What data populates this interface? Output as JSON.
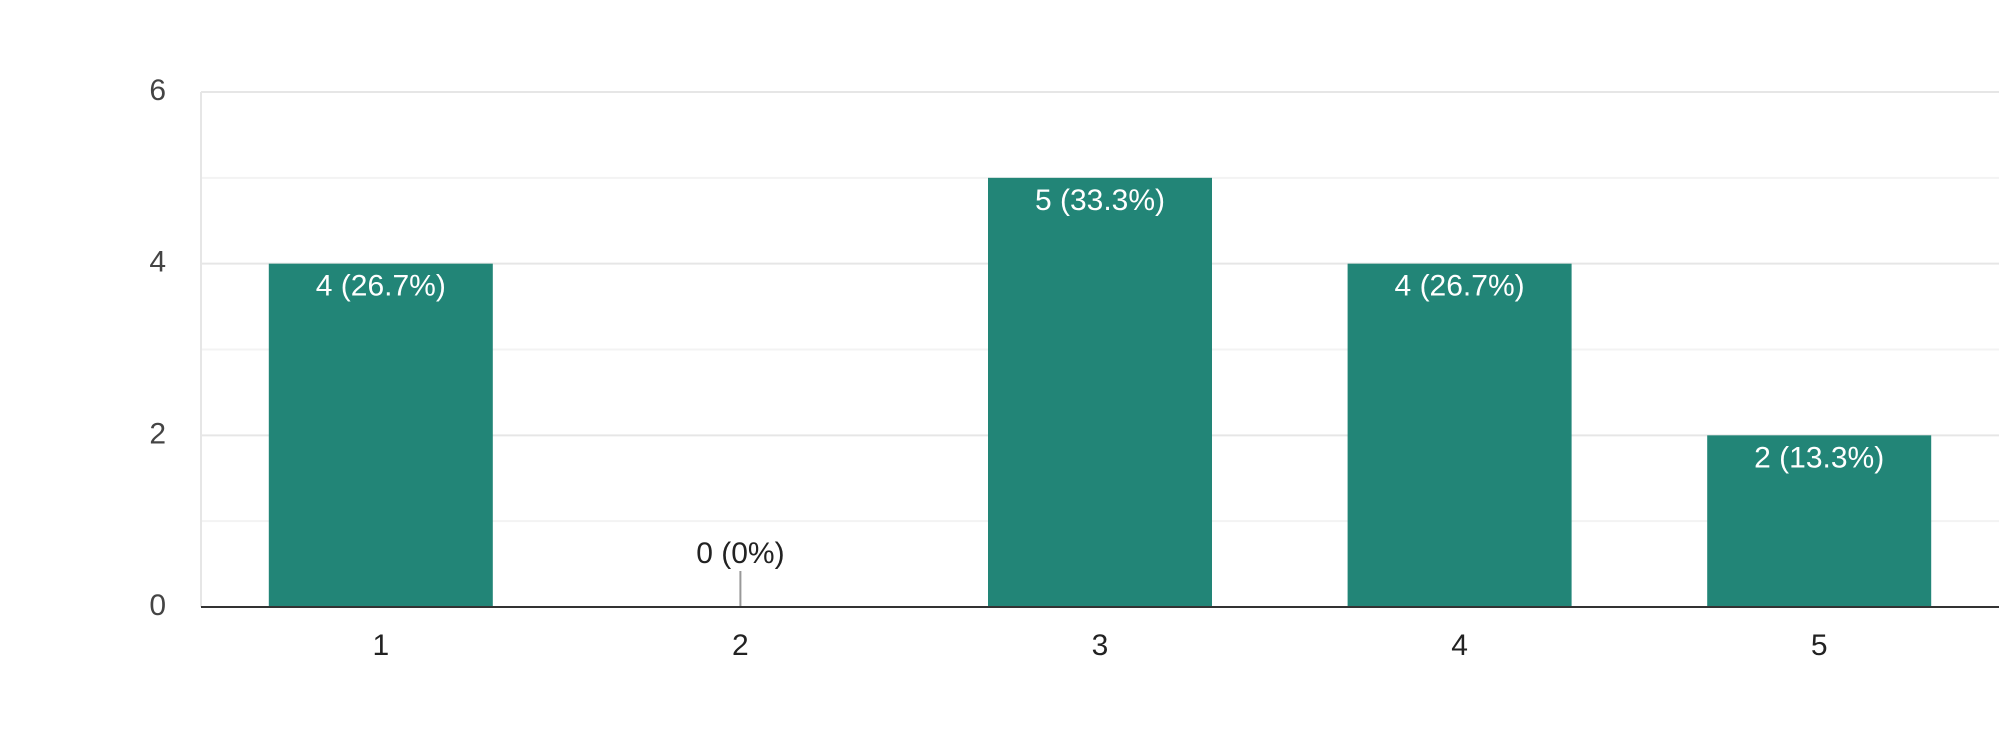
{
  "chart_data": {
    "type": "bar",
    "categories": [
      "1",
      "2",
      "3",
      "4",
      "5"
    ],
    "values": [
      4,
      0,
      5,
      4,
      2
    ],
    "value_labels": [
      "4 (26.7%)",
      "0 (0%)",
      "5 (33.3%)",
      "4 (26.7%)",
      "2 (13.3%)"
    ],
    "color": "#228577",
    "ylim": [
      0,
      6
    ],
    "yticks": [
      0,
      2,
      4,
      6
    ],
    "grid": true
  }
}
